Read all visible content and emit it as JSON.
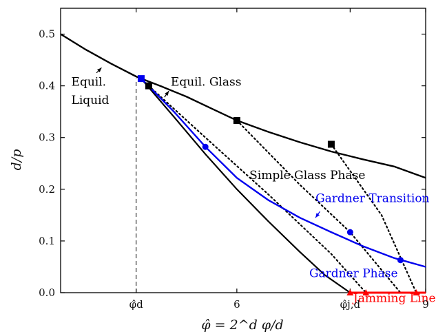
{
  "chart_data": {
    "type": "line",
    "title": "",
    "xlabel": "φ̂ = 2^d φ/d",
    "ylabel": "d/p",
    "xlim": [
      3.2,
      9.0
    ],
    "ylim": [
      0.0,
      0.55
    ],
    "x_ticks": [
      {
        "value": 4.4,
        "label": "φ̂d"
      },
      {
        "value": 6.0,
        "label": "6"
      },
      {
        "value": 7.8,
        "label": "φ̂j,d"
      },
      {
        "value": 9.0,
        "label": "9"
      }
    ],
    "y_ticks": [
      {
        "value": 0.0,
        "label": "0.0"
      },
      {
        "value": 0.1,
        "label": "0.1"
      },
      {
        "value": 0.2,
        "label": "0.2"
      },
      {
        "value": 0.3,
        "label": "0.3"
      },
      {
        "value": 0.4,
        "label": "0.4"
      },
      {
        "value": 0.5,
        "label": "0.5"
      }
    ],
    "series": [
      {
        "name": "Equil. Liquid",
        "color": "#000000",
        "style": "solid",
        "x": [
          3.2,
          3.6,
          4.0,
          4.4,
          4.48
        ],
        "y": [
          0.5,
          0.47,
          0.443,
          0.418,
          0.414
        ]
      },
      {
        "name": "Equil. Glass",
        "color": "#000000",
        "style": "solid",
        "x": [
          4.48,
          4.8,
          5.2,
          5.6,
          6.0,
          6.5,
          7.0,
          7.5,
          8.0,
          8.5,
          9.0
        ],
        "y": [
          0.414,
          0.399,
          0.379,
          0.356,
          0.333,
          0.311,
          0.291,
          0.273,
          0.258,
          0.244,
          0.222
        ]
      },
      {
        "name": "Gardner Transition",
        "color": "#0000ee",
        "style": "solid",
        "x": [
          4.48,
          5.0,
          5.5,
          6.0,
          6.5,
          7.0,
          7.5,
          8.0,
          8.5,
          9.0
        ],
        "y": [
          0.414,
          0.35,
          0.282,
          0.222,
          0.179,
          0.145,
          0.117,
          0.09,
          0.067,
          0.05
        ]
      },
      {
        "name": "Jamming Line",
        "color": "#ff0000",
        "style": "solid",
        "x": [
          7.8,
          9.0
        ],
        "y": [
          0.0,
          0.0
        ]
      }
    ],
    "state_lines": [
      {
        "style": "solid",
        "color": "#000000",
        "x": [
          4.48,
          5.0,
          5.5,
          6.0,
          6.5,
          7.0,
          7.4,
          7.8
        ],
        "y": [
          0.414,
          0.34,
          0.268,
          0.2,
          0.138,
          0.079,
          0.034,
          0.0
        ]
      },
      {
        "style": "dotted",
        "color": "#000000",
        "x": [
          4.6,
          5.5,
          6.5,
          7.5,
          8.05
        ],
        "y": [
          0.4,
          0.3,
          0.19,
          0.075,
          0.0
        ]
      },
      {
        "style": "dotted",
        "color": "#000000",
        "x": [
          6.0,
          7.0,
          7.8,
          8.6
        ],
        "y": [
          0.333,
          0.209,
          0.117,
          0.0
        ]
      },
      {
        "style": "dotted",
        "color": "#000000",
        "x": [
          7.5,
          8.3,
          8.85
        ],
        "y": [
          0.287,
          0.15,
          0.0
        ]
      }
    ],
    "markers": [
      {
        "shape": "square",
        "color": "#0000ee",
        "x": 4.48,
        "y": 0.414
      },
      {
        "shape": "square",
        "color": "#000000",
        "x": 4.6,
        "y": 0.4
      },
      {
        "shape": "square",
        "color": "#000000",
        "x": 6.0,
        "y": 0.333
      },
      {
        "shape": "square",
        "color": "#000000",
        "x": 7.5,
        "y": 0.287
      },
      {
        "shape": "circle",
        "color": "#0000ee",
        "x": 5.5,
        "y": 0.282
      },
      {
        "shape": "circle",
        "color": "#0000ee",
        "x": 7.8,
        "y": 0.117
      },
      {
        "shape": "circle",
        "color": "#0000ee",
        "x": 8.6,
        "y": 0.063
      },
      {
        "shape": "triangle",
        "color": "#ff0000",
        "x": 7.8,
        "y": 0.0
      },
      {
        "shape": "triangle",
        "color": "#ff0000",
        "x": 8.05,
        "y": 0.0
      },
      {
        "shape": "triangle",
        "color": "#ff0000",
        "x": 8.85,
        "y": 0.0
      }
    ],
    "reference_lines": [
      {
        "x": 4.4,
        "y_from": 0.0,
        "y_to": 0.414,
        "style": "dashed",
        "color": "#000000"
      }
    ],
    "annotations": [
      {
        "text": "Equil.",
        "color": "#000000",
        "x": 3.37,
        "y": 0.4
      },
      {
        "text": "Liquid",
        "color": "#000000",
        "x": 3.37,
        "y": 0.365
      },
      {
        "text": "Equil. Glass",
        "color": "#000000",
        "x": 4.95,
        "y": 0.4
      },
      {
        "text": "Simple Glass Phase",
        "color": "#000000",
        "x": 6.2,
        "y": 0.22
      },
      {
        "text": "Gardner Transition",
        "color": "#0000ee",
        "x": 7.25,
        "y": 0.175
      },
      {
        "text": "Gardner Phase",
        "color": "#0000ee",
        "x": 7.15,
        "y": 0.03
      },
      {
        "text": "Jamming Line",
        "color": "#ff0000",
        "x": 7.85,
        "y": -0.018
      }
    ],
    "arrows": [
      {
        "color": "#000000",
        "from": [
          3.77,
          0.425
        ],
        "to": [
          3.85,
          0.435
        ]
      },
      {
        "color": "#000000",
        "from": [
          4.85,
          0.378
        ],
        "to": [
          4.92,
          0.39
        ]
      },
      {
        "color": "#0000ee",
        "from": [
          7.32,
          0.157
        ],
        "to": [
          7.25,
          0.145
        ]
      }
    ],
    "grid": false,
    "legend": "none"
  }
}
